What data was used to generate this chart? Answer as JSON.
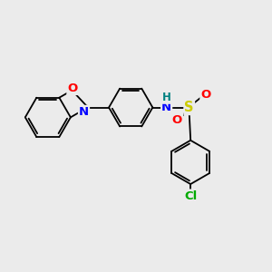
{
  "bg_color": "#ebebeb",
  "bond_color": "#000000",
  "bond_width": 1.3,
  "atom_colors": {
    "O": "#ff0000",
    "N": "#0000ff",
    "S": "#cccc00",
    "Cl": "#00aa00",
    "H": "#008080"
  },
  "font_size": 8.5,
  "fig_size": [
    3.0,
    3.0
  ],
  "xlim": [
    0,
    10
  ],
  "ylim": [
    0,
    10
  ]
}
